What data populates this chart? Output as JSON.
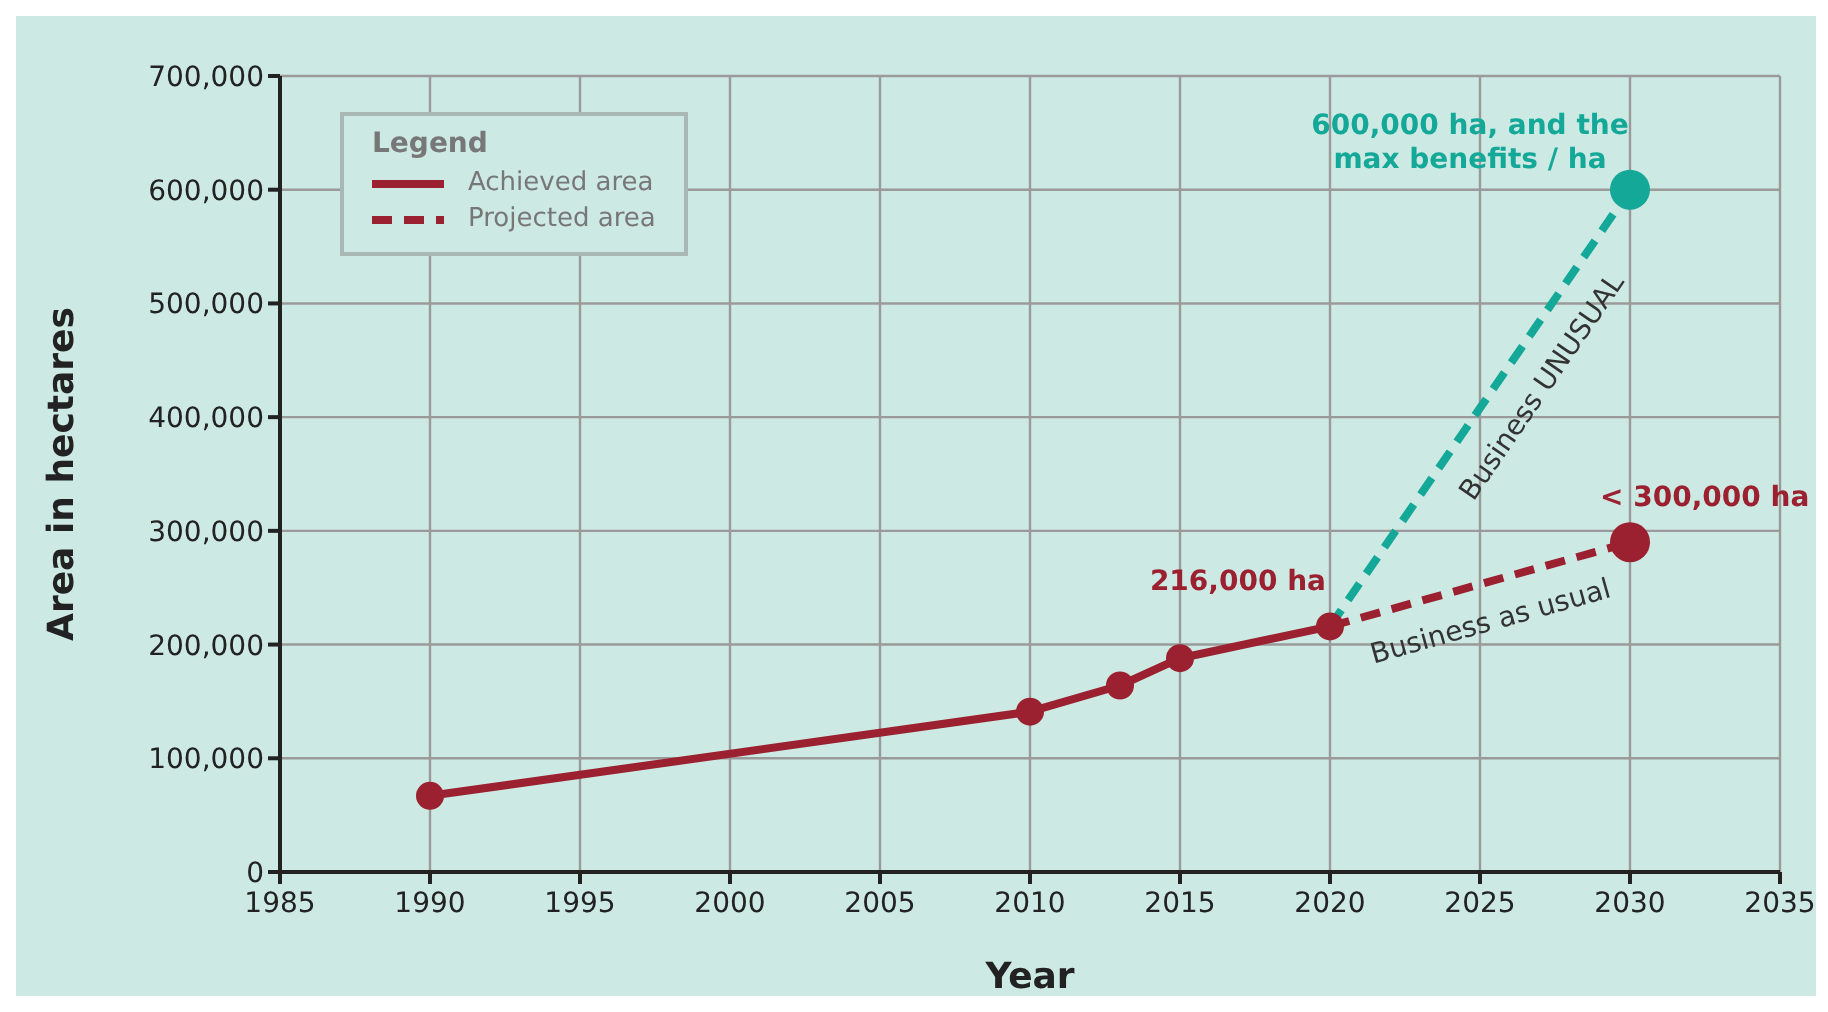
{
  "chart_data": {
    "type": "line",
    "xlabel": "Year",
    "ylabel": "Area in hectares",
    "legend_title": "Legend",
    "legend": "top left",
    "grid": true,
    "marker": "circle",
    "xlim": [
      1985,
      2035
    ],
    "xticks": [
      1985,
      1990,
      1995,
      2000,
      2005,
      2010,
      2015,
      2020,
      2025,
      2030,
      2035
    ],
    "ylim": [
      0,
      700000
    ],
    "yticks": [
      0,
      {
        "value": 100000,
        "label": "100,000"
      },
      {
        "value": 200000,
        "label": "200,000"
      },
      {
        "value": 300000,
        "label": "300,000"
      },
      {
        "value": 400000,
        "label": "400,000"
      },
      {
        "value": 500000,
        "label": "500,000"
      },
      {
        "value": 600000,
        "label": "600,000"
      },
      {
        "value": 700000,
        "label": "700,000"
      }
    ],
    "series": [
      {
        "name": "Achieved area",
        "color": "#9b2030",
        "line_style": "solid",
        "x": [
          1990,
          2010,
          2013,
          2015,
          2020
        ],
        "values": [
          67000,
          141000,
          164000,
          188000,
          216000
        ]
      },
      {
        "name": "Projected area",
        "color": "#9b2030",
        "line_style": "dashed",
        "x": [
          2020,
          2030
        ],
        "values": [
          216000,
          290000
        ]
      },
      {
        "color": "#14a898",
        "line_style": "dashed",
        "x": [
          2020,
          2030
        ],
        "values": [
          216000,
          600000
        ]
      }
    ],
    "annotations": [
      {
        "text": "216,000 ha",
        "x": 2020,
        "y": 216000
      },
      {
        "text": "< 300,000 ha",
        "x": 2030,
        "y": 290000
      },
      {
        "text": "600,000 ha, and the max benefits / ha",
        "x": 2030,
        "y": 600000
      },
      {
        "text": "Business UNUSUAL",
        "x": 2026,
        "y": 446000
      },
      {
        "text": "Business as usual",
        "x": 2025,
        "y": 253000
      }
    ]
  }
}
